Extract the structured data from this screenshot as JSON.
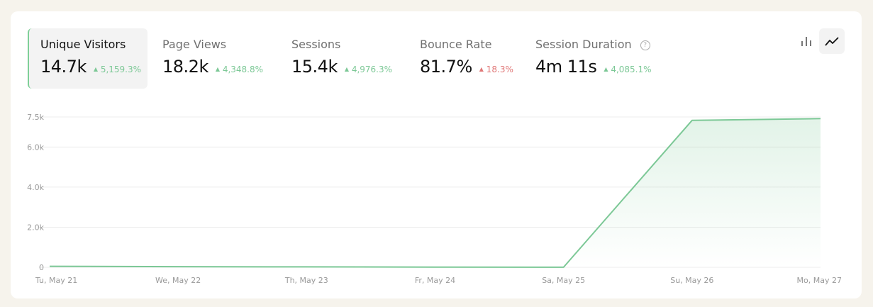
{
  "metrics": [
    {
      "label": "Unique Visitors",
      "value": "14.7k",
      "change": "5,159.3%",
      "trend": "up",
      "status": "good",
      "active": true
    },
    {
      "label": "Page Views",
      "value": "18.2k",
      "change": "4,348.8%",
      "trend": "up",
      "status": "good"
    },
    {
      "label": "Sessions",
      "value": "15.4k",
      "change": "4,976.3%",
      "trend": "up",
      "status": "good"
    },
    {
      "label": "Bounce Rate",
      "value": "81.7%",
      "change": "18.3%",
      "trend": "up",
      "status": "bad"
    },
    {
      "label": "Session Duration",
      "value": "4m 11s",
      "change": "4,085.1%",
      "trend": "up",
      "status": "good",
      "help_icon": "question-circle-icon"
    }
  ],
  "view_toggle": {
    "options": [
      "bar-chart-icon",
      "line-chart-icon"
    ],
    "selected": "line-chart-icon"
  },
  "colors": {
    "line": "#7cc896",
    "good": "#7cc896",
    "bad": "#e07878"
  },
  "chart_data": {
    "type": "area",
    "categories": [
      "Tu, May 21",
      "We, May 22",
      "Th, May 23",
      "Fr, May 24",
      "Sa, May 25",
      "Su, May 26",
      "Mo, May 27"
    ],
    "series": [
      {
        "values": [
          50,
          30,
          20,
          10,
          5,
          7330,
          7420
        ]
      }
    ],
    "yticks": [
      0,
      2000,
      4000,
      6000,
      7500
    ],
    "ytick_labels": [
      "0",
      "2.0k",
      "4.0k",
      "6.0k",
      "7.5k"
    ],
    "ylim": [
      0,
      7500
    ],
    "grid": true,
    "xlabel": "",
    "ylabel": ""
  }
}
